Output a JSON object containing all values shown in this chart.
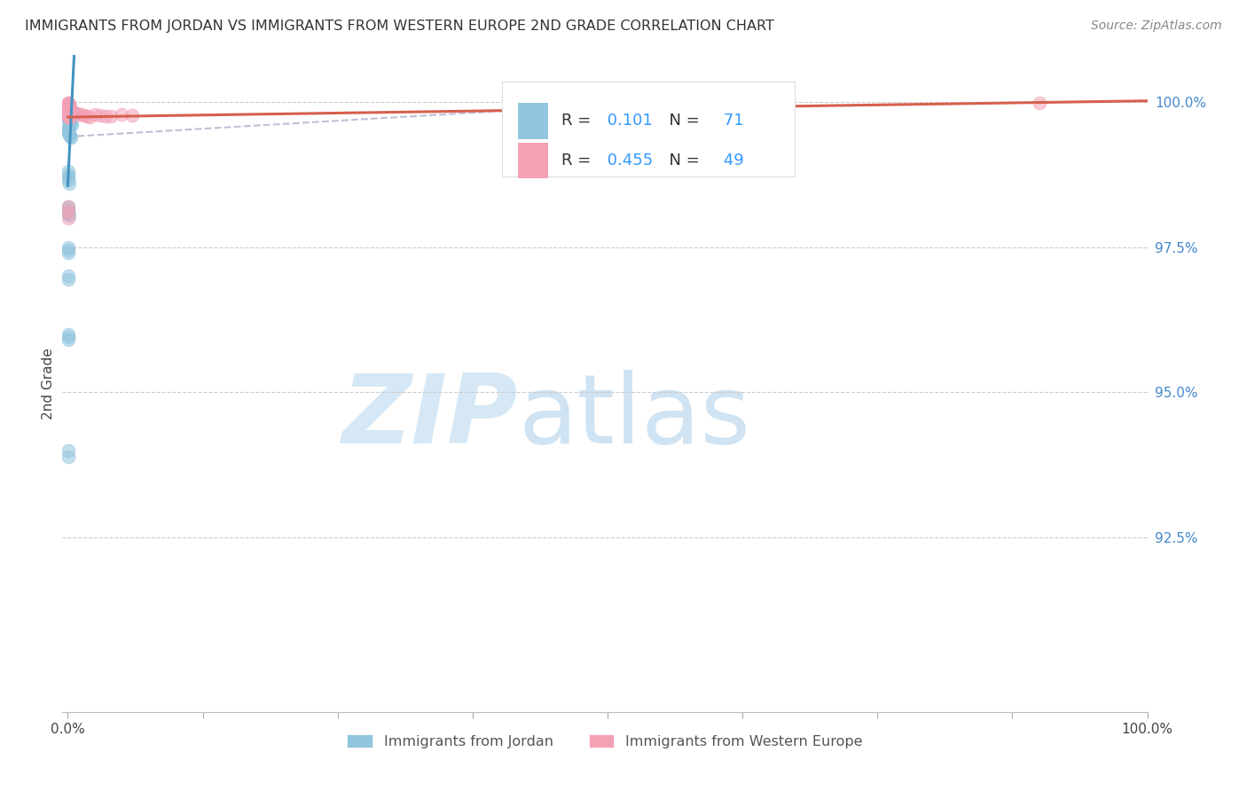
{
  "title": "IMMIGRANTS FROM JORDAN VS IMMIGRANTS FROM WESTERN EUROPE 2ND GRADE CORRELATION CHART",
  "source": "Source: ZipAtlas.com",
  "ylabel": "2nd Grade",
  "ytick_labels": [
    "100.0%",
    "97.5%",
    "95.0%",
    "92.5%"
  ],
  "ytick_values": [
    1.0,
    0.975,
    0.95,
    0.925
  ],
  "xlim": [
    -0.005,
    1.0
  ],
  "ylim": [
    0.895,
    1.008
  ],
  "legend_blue_r": "0.101",
  "legend_blue_n": "71",
  "legend_pink_r": "0.455",
  "legend_pink_n": "49",
  "blue_color": "#92c5de",
  "pink_color": "#f4a0b5",
  "blue_line_color": "#4393c3",
  "pink_line_color": "#d6604d",
  "dashed_color": "#b0b0cc",
  "watermark_zip": "ZIP",
  "watermark_atlas": "atlas",
  "watermark_color": "#d6e8f5",
  "jordan_x": [
    0.0002,
    0.0003,
    0.0004,
    0.0005,
    0.0006,
    0.0007,
    0.0008,
    0.0009,
    0.001,
    0.0012,
    0.0013,
    0.0014,
    0.0015,
    0.0016,
    0.0018,
    0.002,
    0.002,
    0.0022,
    0.0025,
    0.003,
    0.003,
    0.0035,
    0.004,
    0.004,
    0.005,
    0.005,
    0.006,
    0.0002,
    0.0003,
    0.0004,
    0.0005,
    0.0006,
    0.0007,
    0.0008,
    0.001,
    0.0012,
    0.0015,
    0.002,
    0.0025,
    0.003,
    0.004,
    0.0002,
    0.0003,
    0.0004,
    0.0005,
    0.0006,
    0.0008,
    0.001,
    0.0015,
    0.002,
    0.003,
    0.0002,
    0.0003,
    0.0005,
    0.0008,
    0.001,
    0.0002,
    0.0003,
    0.0004,
    0.0005,
    0.001,
    0.0002,
    0.0003,
    0.0004,
    0.0002,
    0.0003,
    0.0002,
    0.0003,
    0.0004,
    0.0002,
    0.0003
  ],
  "jordan_y": [
    0.9995,
    0.9993,
    0.9992,
    0.999,
    0.9988,
    0.9987,
    0.999,
    0.9989,
    0.9991,
    0.9985,
    0.9984,
    0.9983,
    0.9988,
    0.9986,
    0.9985,
    0.9987,
    0.9983,
    0.9986,
    0.9984,
    0.9985,
    0.998,
    0.9982,
    0.9984,
    0.9978,
    0.9983,
    0.9979,
    0.998,
    0.9975,
    0.9974,
    0.9973,
    0.9972,
    0.9971,
    0.997,
    0.9969,
    0.9972,
    0.9968,
    0.9965,
    0.9967,
    0.9964,
    0.9963,
    0.996,
    0.9955,
    0.9954,
    0.9953,
    0.995,
    0.9948,
    0.9947,
    0.9945,
    0.9943,
    0.994,
    0.9938,
    0.988,
    0.9875,
    0.987,
    0.9865,
    0.986,
    0.982,
    0.9815,
    0.981,
    0.9808,
    0.9805,
    0.975,
    0.9745,
    0.974,
    0.97,
    0.9695,
    0.96,
    0.9595,
    0.959,
    0.94,
    0.939
  ],
  "europe_x": [
    0.0003,
    0.0004,
    0.0005,
    0.0006,
    0.0008,
    0.001,
    0.0012,
    0.0015,
    0.002,
    0.0003,
    0.0004,
    0.0005,
    0.0007,
    0.001,
    0.0012,
    0.0015,
    0.0003,
    0.0005,
    0.0008,
    0.001,
    0.0015,
    0.0003,
    0.0005,
    0.001,
    0.003,
    0.004,
    0.005,
    0.006,
    0.008,
    0.01,
    0.012,
    0.015,
    0.018,
    0.02,
    0.025,
    0.03,
    0.035,
    0.04,
    0.05,
    0.06,
    0.0003,
    0.0004,
    0.0005,
    0.0006,
    0.0008,
    0.0003,
    0.0005,
    0.0008,
    0.9
  ],
  "europe_y": [
    0.9998,
    0.9997,
    0.9996,
    0.9995,
    0.9993,
    0.9995,
    0.9994,
    0.9992,
    0.9993,
    0.999,
    0.9989,
    0.9988,
    0.9987,
    0.9988,
    0.9986,
    0.9985,
    0.9982,
    0.998,
    0.9979,
    0.9978,
    0.9977,
    0.9975,
    0.9974,
    0.9973,
    0.9985,
    0.9984,
    0.9983,
    0.9982,
    0.998,
    0.9979,
    0.9978,
    0.9977,
    0.9975,
    0.9974,
    0.9978,
    0.9977,
    0.9976,
    0.9975,
    0.9978,
    0.9977,
    0.9998,
    0.9997,
    0.9996,
    0.9995,
    0.9994,
    0.982,
    0.981,
    0.98,
    0.9998
  ]
}
